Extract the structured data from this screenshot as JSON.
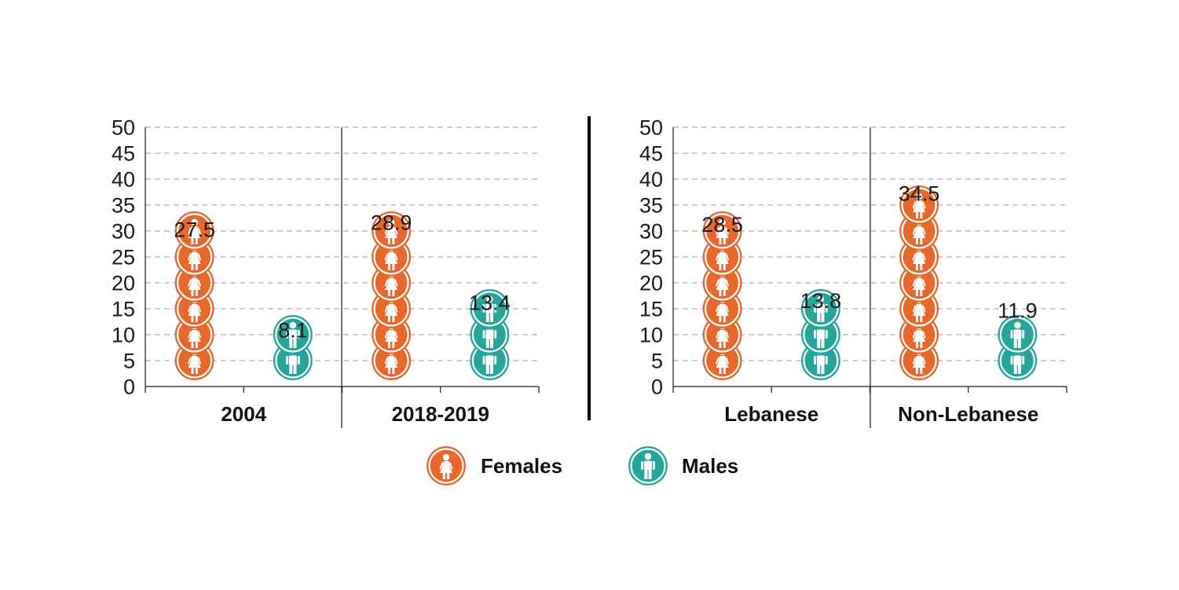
{
  "chart_data": [
    {
      "type": "bar",
      "style": "pictograph",
      "groups": [
        "2004",
        "2018-2019"
      ],
      "series": [
        {
          "name": "Females",
          "values": [
            27.5,
            28.9
          ]
        },
        {
          "name": "Males",
          "values": [
            8.1,
            13.4
          ]
        }
      ],
      "ylim": [
        0,
        50
      ],
      "yticks": [
        0,
        5,
        10,
        15,
        20,
        25,
        30,
        35,
        40,
        45,
        50
      ],
      "grid": true,
      "icons_per_value": 5
    },
    {
      "type": "bar",
      "style": "pictograph",
      "groups": [
        "Lebanese",
        "Non-Lebanese"
      ],
      "series": [
        {
          "name": "Females",
          "values": [
            28.5,
            34.5
          ]
        },
        {
          "name": "Males",
          "values": [
            13.8,
            11.9
          ]
        }
      ],
      "ylim": [
        0,
        50
      ],
      "yticks": [
        0,
        5,
        10,
        15,
        20,
        25,
        30,
        35,
        40,
        45,
        50
      ],
      "grid": true,
      "icons_per_value": 5
    }
  ],
  "legend": {
    "position": "bottom",
    "items": [
      {
        "label": "Females",
        "icon": "female-person-icon"
      },
      {
        "label": "Males",
        "icon": "male-person-icon"
      }
    ]
  },
  "colors": {
    "Females": "#e8672a",
    "Males": "#26a69a",
    "grid": "#c8c8c8",
    "axis": "#1a1a1a"
  }
}
